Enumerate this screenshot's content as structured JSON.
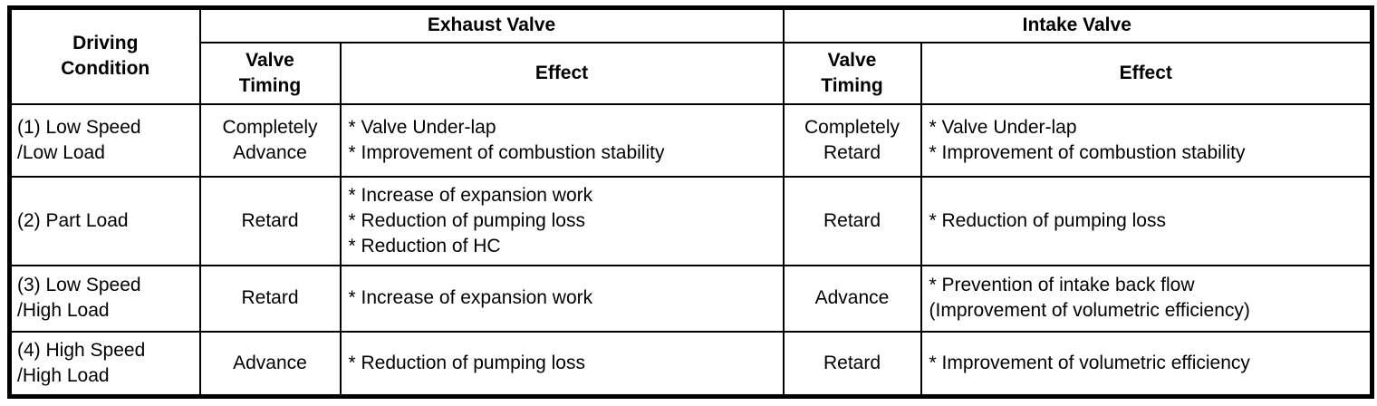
{
  "page": {
    "background": "#ffffff",
    "text_color": "#000000",
    "border_color": "#000000"
  },
  "table": {
    "header": {
      "driving_condition": "Driving\nCondition",
      "exhaust_valve": "Exhaust Valve",
      "intake_valve": "Intake Valve",
      "valve_timing": "Valve\nTiming",
      "effect": "Effect"
    },
    "rows": [
      {
        "condition": [
          "(1) Low Speed",
          "/Low Load"
        ],
        "exhaust_timing": "Completely\nAdvance",
        "exhaust_effects": [
          "* Valve Under-lap",
          "* Improvement of combustion stability"
        ],
        "intake_timing": "Completely\nRetard",
        "intake_effects": [
          "* Valve Under-lap",
          "* Improvement of combustion stability"
        ]
      },
      {
        "condition": [
          "(2) Part Load"
        ],
        "exhaust_timing": "Retard",
        "exhaust_effects": [
          "* Increase of expansion work",
          "* Reduction of pumping loss",
          "* Reduction of HC"
        ],
        "intake_timing": "Retard",
        "intake_effects": [
          "* Reduction of pumping loss"
        ]
      },
      {
        "condition": [
          "(3) Low Speed",
          "/High Load"
        ],
        "exhaust_timing": "Retard",
        "exhaust_effects": [
          "* Increase of expansion work"
        ],
        "intake_timing": "Advance",
        "intake_effects": [
          "* Prevention of intake back flow",
          "(Improvement of volumetric efficiency)"
        ]
      },
      {
        "condition": [
          "(4) High Speed",
          "/High Load"
        ],
        "exhaust_timing": "Advance",
        "exhaust_effects": [
          "* Reduction of pumping loss"
        ],
        "intake_timing": "Retard",
        "intake_effects": [
          "* Improvement of volumetric efficiency"
        ]
      }
    ]
  }
}
